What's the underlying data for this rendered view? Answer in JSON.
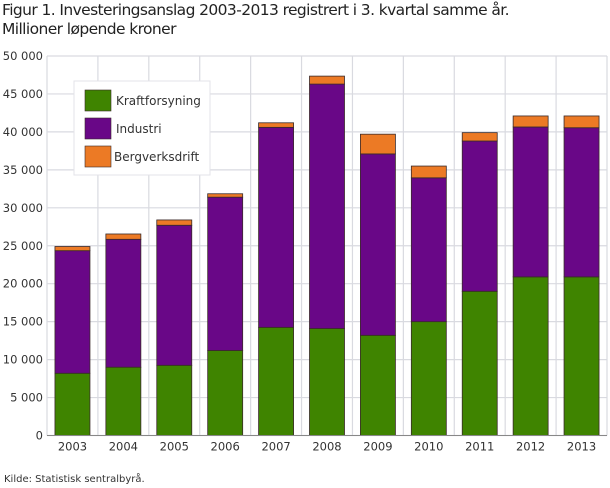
{
  "chart_data": {
    "type": "bar",
    "stacked": true,
    "title": "Figur 1. Investeringsanslag 2003-2013 registrert i 3. kvartal samme år.",
    "subtitle": "Millioner løpende kroner",
    "xlabel": "",
    "ylabel": "",
    "ylim": [
      0,
      50000
    ],
    "yticks": [
      0,
      5000,
      10000,
      15000,
      20000,
      25000,
      30000,
      35000,
      40000,
      45000,
      50000
    ],
    "ytick_labels": [
      "0",
      "5 000",
      "10 000",
      "15 000",
      "20 000",
      "25 000",
      "30 000",
      "35 000",
      "40 000",
      "45 000",
      "50 000"
    ],
    "categories": [
      "2003",
      "2004",
      "2005",
      "2006",
      "2007",
      "2008",
      "2009",
      "2010",
      "2011",
      "2012",
      "2013"
    ],
    "series": [
      {
        "name": "Kraftforsyning",
        "color": "#3f8400",
        "values": [
          8200,
          9000,
          9250,
          11200,
          14250,
          14100,
          13200,
          15000,
          19000,
          20900,
          20900
        ]
      },
      {
        "name": "Industri",
        "color": "#690787",
        "values": [
          16150,
          16850,
          18450,
          20200,
          26350,
          32200,
          23900,
          18950,
          19800,
          19750,
          19650
        ]
      },
      {
        "name": "Bergverksdrift",
        "color": "#ec7a25",
        "values": [
          550,
          700,
          700,
          450,
          600,
          1050,
          2600,
          1550,
          1100,
          1450,
          1550
        ]
      }
    ],
    "grid": true,
    "legend_position": "top-left",
    "source": "Kilde: Statistisk sentralbyrå."
  }
}
